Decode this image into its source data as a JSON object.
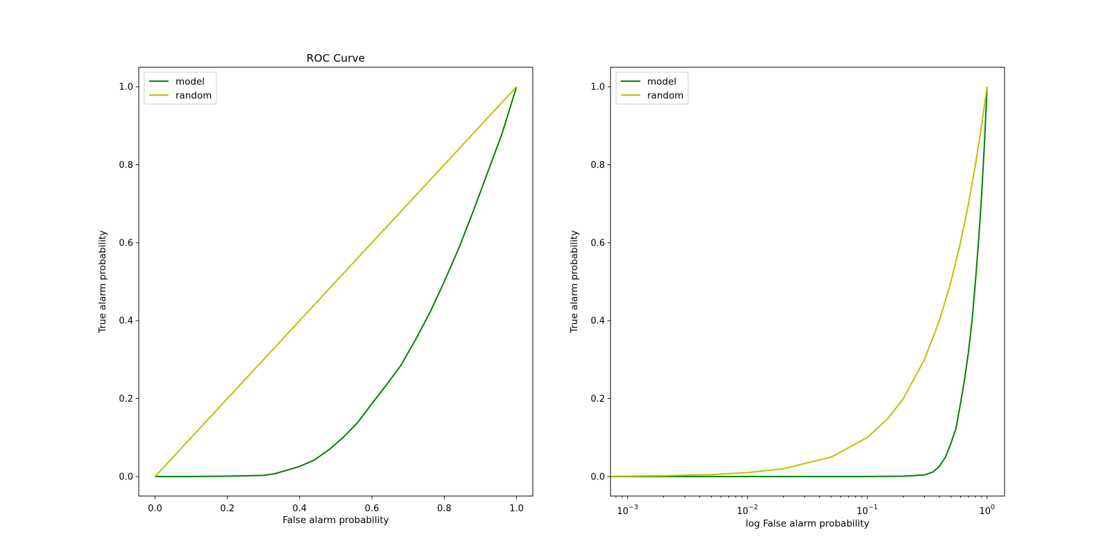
{
  "chart_data": [
    {
      "type": "line",
      "title": "ROC Curve",
      "xlabel": "False alarm probability",
      "ylabel": "True alarm probability",
      "xscale": "linear",
      "xlim": [
        -0.045,
        1.045
      ],
      "ylim": [
        -0.05,
        1.05
      ],
      "xticks": [
        0.0,
        0.2,
        0.4,
        0.6,
        0.8,
        1.0
      ],
      "xtick_labels": [
        "0.0",
        "0.2",
        "0.4",
        "0.6",
        "0.8",
        "1.0"
      ],
      "yticks": [
        0.0,
        0.2,
        0.4,
        0.6,
        0.8,
        1.0
      ],
      "ytick_labels": [
        "0.0",
        "0.2",
        "0.4",
        "0.6",
        "0.8",
        "1.0"
      ],
      "legend_position": "upper-left",
      "grid": false,
      "series": [
        {
          "name": "model",
          "color": "#008000",
          "x": [
            0.0,
            0.1,
            0.2,
            0.3,
            0.33,
            0.36,
            0.4,
            0.44,
            0.48,
            0.52,
            0.56,
            0.6,
            0.64,
            0.68,
            0.72,
            0.76,
            0.8,
            0.84,
            0.88,
            0.92,
            0.96,
            1.0
          ],
          "y": [
            0.0,
            0.0,
            0.001,
            0.003,
            0.007,
            0.015,
            0.026,
            0.042,
            0.068,
            0.1,
            0.138,
            0.187,
            0.235,
            0.285,
            0.35,
            0.42,
            0.5,
            0.585,
            0.68,
            0.78,
            0.88,
            1.0
          ]
        },
        {
          "name": "random",
          "color": "#bfbf00",
          "x": [
            0.0,
            1.0
          ],
          "y": [
            0.0,
            1.0
          ]
        }
      ]
    },
    {
      "type": "line",
      "title": "",
      "xlabel": "log False alarm probability",
      "ylabel": "True alarm probability",
      "xscale": "log",
      "xlim": [
        0.00072,
        1.4
      ],
      "ylim": [
        -0.05,
        1.05
      ],
      "xticks": [
        0.001,
        0.01,
        0.1,
        1
      ],
      "xtick_labels": [
        {
          "base": "10",
          "exp": "−3"
        },
        {
          "base": "10",
          "exp": "−2"
        },
        {
          "base": "10",
          "exp": "−1"
        },
        {
          "base": "10",
          "exp": "0"
        }
      ],
      "yticks": [
        0.0,
        0.2,
        0.4,
        0.6,
        0.8,
        1.0
      ],
      "ytick_labels": [
        "0.0",
        "0.2",
        "0.4",
        "0.6",
        "0.8",
        "1.0"
      ],
      "legend_position": "upper-left",
      "grid": false,
      "series": [
        {
          "name": "model",
          "color": "#008000",
          "x": [
            0.0007,
            0.01,
            0.1,
            0.2,
            0.3,
            0.35,
            0.4,
            0.45,
            0.5,
            0.55,
            0.6,
            0.65,
            0.7,
            0.75,
            0.8,
            0.85,
            0.9,
            0.95,
            1.0
          ],
          "y": [
            0.0,
            0.0,
            0.0,
            0.001,
            0.004,
            0.011,
            0.026,
            0.05,
            0.086,
            0.123,
            0.187,
            0.25,
            0.32,
            0.4,
            0.5,
            0.605,
            0.72,
            0.85,
            1.0
          ]
        },
        {
          "name": "random",
          "color": "#bfbf00",
          "x": [
            0.0007,
            0.001,
            0.002,
            0.005,
            0.01,
            0.02,
            0.05,
            0.1,
            0.15,
            0.2,
            0.3,
            0.4,
            0.5,
            0.6,
            0.7,
            0.8,
            0.9,
            1.0
          ],
          "y": [
            0.0007,
            0.001,
            0.002,
            0.005,
            0.01,
            0.02,
            0.05,
            0.1,
            0.15,
            0.2,
            0.3,
            0.4,
            0.5,
            0.6,
            0.7,
            0.8,
            0.9,
            1.0
          ]
        }
      ]
    }
  ]
}
